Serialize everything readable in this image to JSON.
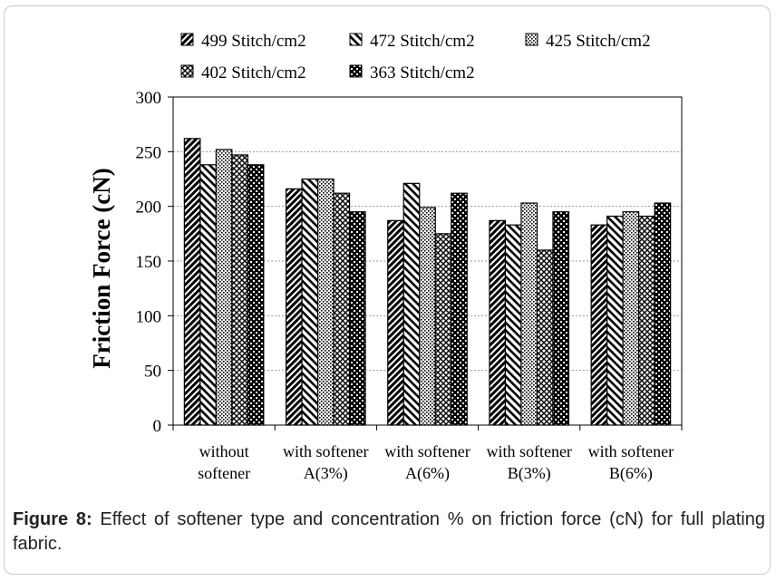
{
  "chart_data": {
    "type": "bar",
    "title": "",
    "xlabel": "",
    "ylabel": "Friction Force (cN)",
    "ylim": [
      0,
      300
    ],
    "yticks": [
      0,
      50,
      100,
      150,
      200,
      250,
      300
    ],
    "grid": true,
    "legend_position": "top",
    "categories": [
      [
        "without",
        "softener"
      ],
      [
        "with softener",
        "A(3%)"
      ],
      [
        "with softener",
        "A(6%)"
      ],
      [
        "with softener",
        "B(3%)"
      ],
      [
        "with softener",
        "B(6%)"
      ]
    ],
    "series": [
      {
        "name": "499 Stitch/cm2",
        "pattern": "diag-dense",
        "values": [
          262,
          216,
          187,
          187,
          183
        ]
      },
      {
        "name": "472 Stitch/cm2",
        "pattern": "diag-wide",
        "values": [
          238,
          225,
          221,
          183,
          191
        ]
      },
      {
        "name": "425 Stitch/cm2",
        "pattern": "dots",
        "values": [
          252,
          225,
          199,
          203,
          195
        ]
      },
      {
        "name": "402 Stitch/cm2",
        "pattern": "cross",
        "values": [
          247,
          212,
          175,
          160,
          191
        ]
      },
      {
        "name": "363 Stitch/cm2",
        "pattern": "checker",
        "values": [
          238,
          195,
          212,
          195,
          203
        ]
      }
    ]
  },
  "caption": {
    "label": "Figure 8:",
    "text": " Effect of softener type and concentration % on friction force (cN) for full plating fabric."
  }
}
